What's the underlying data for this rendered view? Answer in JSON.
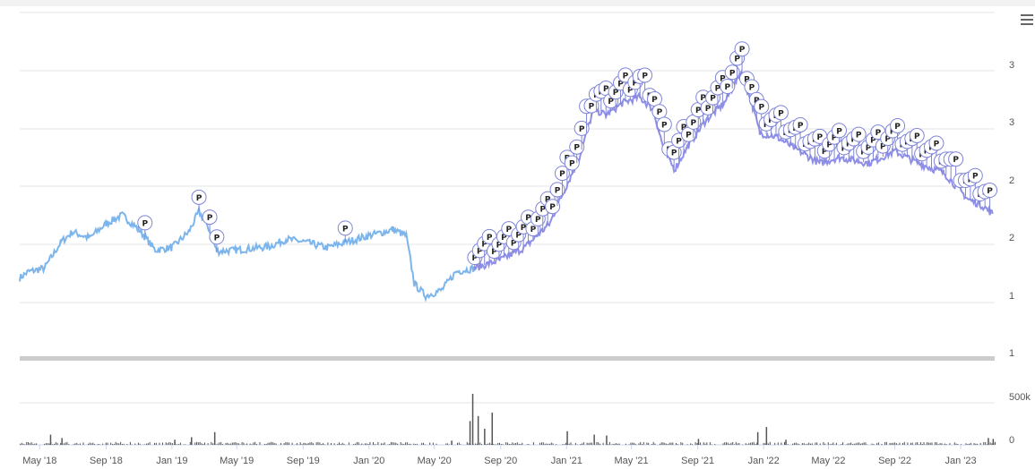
{
  "menu": {
    "icon": "hamburger-menu-icon"
  },
  "colors": {
    "price_line": "#7cb5ec",
    "price_line_dense": "#8f8fe8",
    "flag_fill": "#ffffff",
    "flag_stroke": "#7f85d8",
    "volume": "#555555",
    "grid": "#e6e6e6",
    "separator": "#cccccc"
  },
  "chart_data": {
    "type": "line",
    "x_axis": {
      "type": "datetime",
      "range": [
        "2018-03-25",
        "2023-03-05"
      ],
      "tick_labels": [
        "May '18",
        "Sep '18",
        "Jan '19",
        "May '19",
        "Sep '19",
        "Jan '20",
        "May '20",
        "Sep '20",
        "Jan '21",
        "May '21",
        "Sep '21",
        "Jan '22",
        "May '22",
        "Sep '22",
        "Jan '23"
      ]
    },
    "price_panel": {
      "y_tick_labels": [
        "1",
        "1",
        "2",
        "2",
        "3",
        "3"
      ],
      "ylim": [
        0.9,
        3.75
      ],
      "series": {
        "type": "line",
        "points": [
          [
            "2018-03-25",
            1.55
          ],
          [
            "2018-04-10",
            1.6
          ],
          [
            "2018-05-10",
            1.63
          ],
          [
            "2018-06-10",
            1.85
          ],
          [
            "2018-07-01",
            1.93
          ],
          [
            "2018-08-01",
            1.88
          ],
          [
            "2018-09-01",
            2.0
          ],
          [
            "2018-10-01",
            2.07
          ],
          [
            "2018-11-01",
            1.95
          ],
          [
            "2018-12-01",
            1.78
          ],
          [
            "2019-01-01",
            1.8
          ],
          [
            "2019-02-01",
            1.93
          ],
          [
            "2019-02-20",
            2.1
          ],
          [
            "2019-03-10",
            1.96
          ],
          [
            "2019-03-25",
            1.77
          ],
          [
            "2019-05-01",
            1.78
          ],
          [
            "2019-07-01",
            1.81
          ],
          [
            "2019-08-01",
            1.87
          ],
          [
            "2019-09-01",
            1.85
          ],
          [
            "2019-10-15",
            1.8
          ],
          [
            "2019-11-15",
            1.84
          ],
          [
            "2020-01-01",
            1.9
          ],
          [
            "2020-02-15",
            1.95
          ],
          [
            "2020-03-10",
            1.9
          ],
          [
            "2020-03-25",
            1.5
          ],
          [
            "2020-04-15",
            1.4
          ],
          [
            "2020-05-15",
            1.45
          ],
          [
            "2020-06-10",
            1.6
          ],
          [
            "2020-07-15",
            1.63
          ],
          [
            "2020-09-01",
            1.7
          ],
          [
            "2020-10-15",
            1.8
          ],
          [
            "2020-12-01",
            2.0
          ],
          [
            "2020-12-20",
            2.2
          ],
          [
            "2021-01-25",
            2.55
          ],
          [
            "2021-02-20",
            2.95
          ],
          [
            "2021-03-15",
            2.9
          ],
          [
            "2021-04-15",
            3.0
          ],
          [
            "2021-05-15",
            3.05
          ],
          [
            "2021-06-10",
            2.95
          ],
          [
            "2021-07-01",
            2.6
          ],
          [
            "2021-07-20",
            2.45
          ],
          [
            "2021-08-15",
            2.65
          ],
          [
            "2021-09-15",
            2.85
          ],
          [
            "2021-10-20",
            3.0
          ],
          [
            "2021-11-20",
            3.25
          ],
          [
            "2021-12-10",
            3.0
          ],
          [
            "2021-12-25",
            2.75
          ],
          [
            "2022-01-25",
            2.72
          ],
          [
            "2022-03-01",
            2.62
          ],
          [
            "2022-04-15",
            2.5
          ],
          [
            "2022-05-20",
            2.55
          ],
          [
            "2022-07-15",
            2.5
          ],
          [
            "2022-09-01",
            2.6
          ],
          [
            "2022-10-15",
            2.5
          ],
          [
            "2022-12-01",
            2.42
          ],
          [
            "2023-01-15",
            2.2
          ],
          [
            "2023-02-10",
            2.15
          ],
          [
            "2023-03-01",
            2.08
          ]
        ],
        "flags": {
          "label": "P",
          "sparse_dates": [
            "2018-11-12",
            "2019-02-20",
            "2019-03-12",
            "2019-03-25",
            "2019-11-18"
          ],
          "dense_range": [
            "2020-07-15",
            "2023-03-01"
          ]
        }
      }
    },
    "volume_panel": {
      "y_tick_labels": [
        "500k",
        "0"
      ],
      "ylim": [
        0,
        580000
      ],
      "series": {
        "type": "bar",
        "bars": [
          [
            "2018-05-20",
            120000
          ],
          [
            "2018-06-10",
            80000
          ],
          [
            "2019-01-05",
            60000
          ],
          [
            "2019-02-05",
            90000
          ],
          [
            "2019-03-20",
            150000
          ],
          [
            "2020-06-01",
            50000
          ],
          [
            "2020-07-05",
            280000
          ],
          [
            "2020-07-10",
            610000
          ],
          [
            "2020-07-20",
            340000
          ],
          [
            "2020-08-01",
            190000
          ],
          [
            "2020-08-15",
            380000
          ],
          [
            "2021-01-01",
            160000
          ],
          [
            "2021-02-20",
            120000
          ],
          [
            "2021-03-15",
            110000
          ],
          [
            "2021-09-01",
            70000
          ],
          [
            "2021-12-20",
            150000
          ],
          [
            "2022-01-05",
            210000
          ],
          [
            "2022-02-10",
            60000
          ],
          [
            "2023-02-20",
            80000
          ],
          [
            "2023-03-01",
            70000
          ]
        ]
      }
    }
  }
}
